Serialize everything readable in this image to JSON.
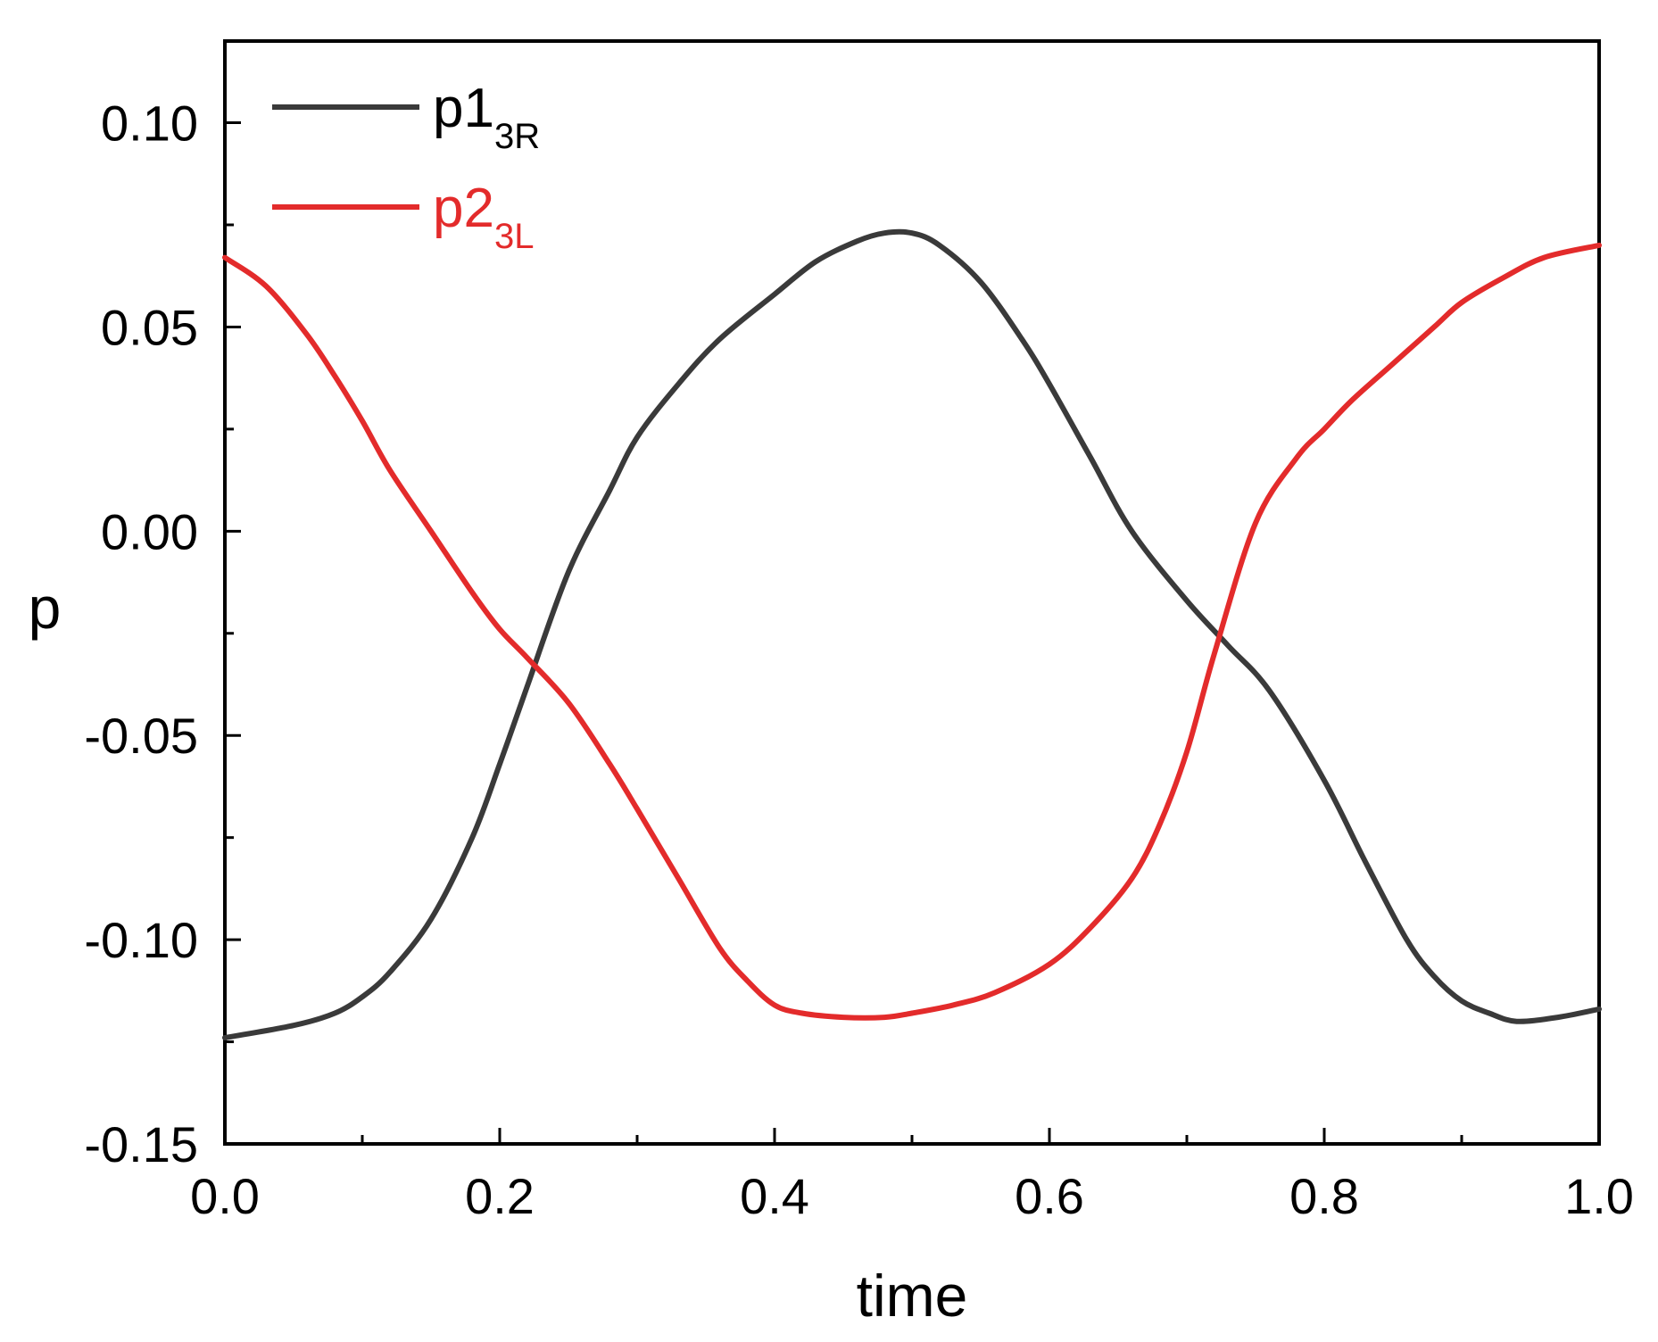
{
  "chart_data": {
    "type": "line",
    "title": "",
    "xlabel": "time",
    "ylabel": "p",
    "xlim": [
      0.0,
      1.0
    ],
    "ylim": [
      -0.15,
      0.12
    ],
    "xticks": [
      "0.0",
      "0.2",
      "0.4",
      "0.6",
      "0.8",
      "1.0"
    ],
    "xtick_values": [
      0.0,
      0.2,
      0.4,
      0.6,
      0.8,
      1.0
    ],
    "yticks": [
      "-0.15",
      "-0.10",
      "-0.05",
      "0.00",
      "0.05",
      "0.10"
    ],
    "ytick_values": [
      -0.15,
      -0.1,
      -0.05,
      0.0,
      0.05,
      0.1
    ],
    "legend_position": "top-left",
    "series": [
      {
        "name": "p1",
        "name_sub": "3R",
        "color": "#3a3a3a",
        "x": [
          0.0,
          0.05,
          0.08,
          0.1,
          0.12,
          0.15,
          0.18,
          0.2,
          0.22,
          0.25,
          0.28,
          0.3,
          0.33,
          0.36,
          0.4,
          0.43,
          0.46,
          0.48,
          0.5,
          0.52,
          0.55,
          0.58,
          0.6,
          0.63,
          0.66,
          0.7,
          0.73,
          0.76,
          0.8,
          0.83,
          0.86,
          0.88,
          0.9,
          0.92,
          0.94,
          0.97,
          1.0
        ],
        "y": [
          -0.124,
          -0.121,
          -0.118,
          -0.114,
          -0.108,
          -0.095,
          -0.075,
          -0.057,
          -0.038,
          -0.01,
          0.01,
          0.023,
          0.036,
          0.047,
          0.058,
          0.066,
          0.071,
          0.073,
          0.073,
          0.07,
          0.061,
          0.047,
          0.036,
          0.018,
          0.0,
          -0.017,
          -0.028,
          -0.039,
          -0.061,
          -0.081,
          -0.1,
          -0.109,
          -0.115,
          -0.118,
          -0.12,
          -0.119,
          -0.117
        ]
      },
      {
        "name": "p2",
        "name_sub": "3L",
        "color": "#e32b2b",
        "x": [
          0.0,
          0.03,
          0.06,
          0.08,
          0.1,
          0.12,
          0.15,
          0.18,
          0.2,
          0.22,
          0.25,
          0.28,
          0.3,
          0.33,
          0.36,
          0.38,
          0.4,
          0.42,
          0.45,
          0.48,
          0.5,
          0.53,
          0.56,
          0.6,
          0.63,
          0.66,
          0.68,
          0.7,
          0.72,
          0.75,
          0.78,
          0.8,
          0.82,
          0.85,
          0.88,
          0.9,
          0.93,
          0.96,
          1.0
        ],
        "y": [
          0.067,
          0.06,
          0.048,
          0.038,
          0.027,
          0.015,
          0.0,
          -0.015,
          -0.024,
          -0.031,
          -0.042,
          -0.057,
          -0.068,
          -0.085,
          -0.102,
          -0.11,
          -0.116,
          -0.118,
          -0.119,
          -0.119,
          -0.118,
          -0.116,
          -0.113,
          -0.106,
          -0.097,
          -0.085,
          -0.072,
          -0.054,
          -0.03,
          0.002,
          0.018,
          0.025,
          0.032,
          0.041,
          0.05,
          0.056,
          0.062,
          0.067,
          0.07
        ]
      }
    ]
  }
}
